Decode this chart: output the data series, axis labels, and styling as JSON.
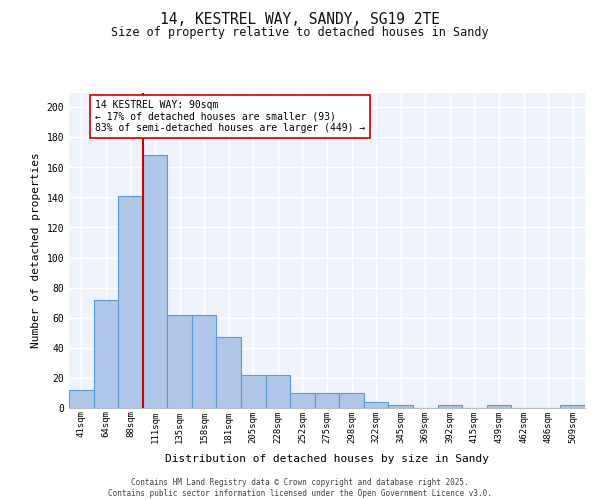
{
  "title1": "14, KESTREL WAY, SANDY, SG19 2TE",
  "title2": "Size of property relative to detached houses in Sandy",
  "xlabel": "Distribution of detached houses by size in Sandy",
  "ylabel": "Number of detached properties",
  "categories": [
    "41sqm",
    "64sqm",
    "88sqm",
    "111sqm",
    "135sqm",
    "158sqm",
    "181sqm",
    "205sqm",
    "228sqm",
    "252sqm",
    "275sqm",
    "298sqm",
    "322sqm",
    "345sqm",
    "369sqm",
    "392sqm",
    "415sqm",
    "439sqm",
    "462sqm",
    "486sqm",
    "509sqm"
  ],
  "values": [
    12,
    72,
    141,
    168,
    62,
    62,
    47,
    22,
    22,
    10,
    10,
    10,
    4,
    2,
    0,
    2,
    0,
    2,
    0,
    0,
    2
  ],
  "bar_color": "#aec6e8",
  "bar_edge_color": "#5b9bd5",
  "bar_edge_width": 0.8,
  "vline_x": 2.5,
  "vline_color": "#cc0000",
  "annotation_box_text": "14 KESTREL WAY: 90sqm\n← 17% of detached houses are smaller (93)\n83% of semi-detached houses are larger (449) →",
  "box_edge_color": "#cc0000",
  "background_color": "#eef2fb",
  "grid_color": "#ffffff",
  "ylim": [
    0,
    210
  ],
  "yticks": [
    0,
    20,
    40,
    60,
    80,
    100,
    120,
    140,
    160,
    180,
    200
  ],
  "footer_line1": "Contains HM Land Registry data © Crown copyright and database right 2025.",
  "footer_line2": "Contains public sector information licensed under the Open Government Licence v3.0."
}
